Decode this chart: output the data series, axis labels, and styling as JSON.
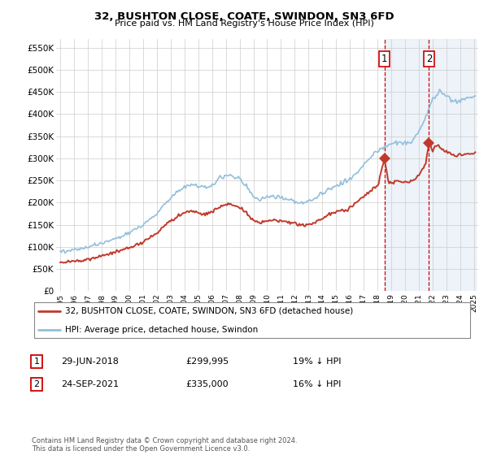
{
  "title": "32, BUSHTON CLOSE, COATE, SWINDON, SN3 6FD",
  "subtitle": "Price paid vs. HM Land Registry's House Price Index (HPI)",
  "ylim": [
    0,
    570000
  ],
  "yticks": [
    0,
    50000,
    100000,
    150000,
    200000,
    250000,
    300000,
    350000,
    400000,
    450000,
    500000,
    550000
  ],
  "ytick_labels": [
    "£0",
    "£50K",
    "£100K",
    "£150K",
    "£200K",
    "£250K",
    "£300K",
    "£350K",
    "£400K",
    "£450K",
    "£500K",
    "£550K"
  ],
  "hpi_color": "#92bfdc",
  "price_color": "#c0392b",
  "transaction_1": {
    "date": "29-JUN-2018",
    "price": 299995,
    "pct": "19%",
    "label": "1"
  },
  "transaction_2": {
    "date": "24-SEP-2021",
    "price": 335000,
    "pct": "16%",
    "label": "2"
  },
  "legend_house_label": "32, BUSHTON CLOSE, COATE, SWINDON, SN3 6FD (detached house)",
  "legend_hpi_label": "HPI: Average price, detached house, Swindon",
  "footer": "Contains HM Land Registry data © Crown copyright and database right 2024.\nThis data is licensed under the Open Government Licence v3.0.",
  "xticks": [
    1995,
    1996,
    1997,
    1998,
    1999,
    2000,
    2001,
    2002,
    2003,
    2004,
    2005,
    2006,
    2007,
    2008,
    2009,
    2010,
    2011,
    2012,
    2013,
    2014,
    2015,
    2016,
    2017,
    2018,
    2019,
    2020,
    2021,
    2022,
    2023,
    2024,
    2025
  ],
  "background_color": "#ffffff",
  "grid_color": "#cccccc",
  "transaction1_x": 2018.496,
  "transaction1_y": 299995,
  "transaction2_x": 2021.73,
  "transaction2_y": 335000,
  "shade_color": "#dce9f5",
  "shade_x1_start": 2018.496,
  "shade_x1_end": 2021.73,
  "shade_x2_start": 2021.73,
  "shade_x2_end": 2025.1
}
